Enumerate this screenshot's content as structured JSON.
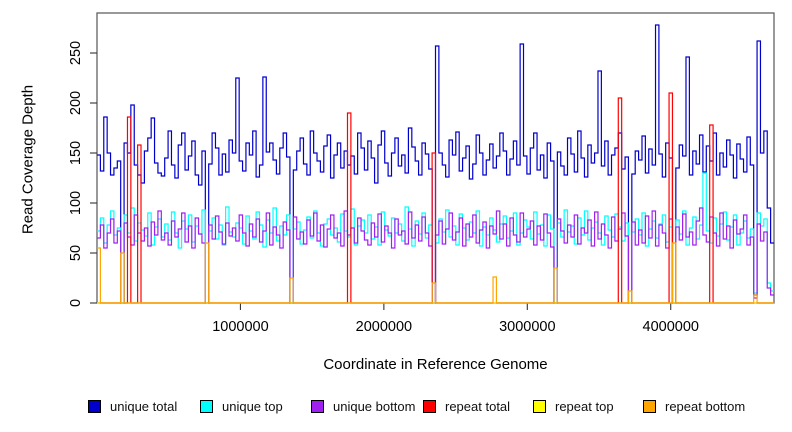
{
  "chart_data": {
    "type": "line",
    "subtype": "step",
    "title": "",
    "xlabel": "Coordinate in Reference Genome",
    "ylabel": "Read Coverage Depth",
    "xlim": [
      0,
      4720000
    ],
    "ylim": [
      0,
      290
    ],
    "grid": false,
    "legend_position": "bottom",
    "xticks": [
      {
        "v": 1000000,
        "label": "1000000"
      },
      {
        "v": 2000000,
        "label": "2000000"
      },
      {
        "v": 3000000,
        "label": "3000000"
      },
      {
        "v": 4000000,
        "label": "4000000"
      }
    ],
    "yticks": [
      {
        "v": 0,
        "label": "0"
      },
      {
        "v": 50,
        "label": "50"
      },
      {
        "v": 100,
        "label": "100"
      },
      {
        "v": 150,
        "label": "150"
      },
      {
        "v": 200,
        "label": "200"
      },
      {
        "v": 250,
        "label": "250"
      }
    ],
    "series": [
      {
        "name": "unique total",
        "color": "#0000CD",
        "values": [
          148,
          132,
          186,
          150,
          128,
          135,
          142,
          0,
          160,
          150,
          198,
          138,
          128,
          120,
          152,
          165,
          185,
          140,
          130,
          127,
          145,
          172,
          138,
          125,
          158,
          170,
          133,
          147,
          162,
          128,
          118,
          152,
          0,
          139,
          170,
          155,
          128,
          149,
          131,
          163,
          150,
          225,
          142,
          132,
          160,
          148,
          172,
          126,
          138,
          226,
          151,
          160,
          143,
          129,
          155,
          170,
          146,
          0,
          133,
          152,
          165,
          139,
          128,
          172,
          150,
          142,
          131,
          157,
          168,
          125,
          148,
          160,
          135,
          152,
          138,
          147,
          129,
          170,
          155,
          133,
          162,
          145,
          120,
          158,
          172,
          140,
          127,
          150,
          165,
          137,
          148,
          130,
          175,
          156,
          142,
          128,
          160,
          149,
          134,
          0,
          257,
          150,
          138,
          126,
          163,
          148,
          171,
          132,
          145,
          157,
          124,
          139,
          168,
          150,
          128,
          143,
          159,
          135,
          147,
          170,
          152,
          128,
          144,
          162,
          138,
          259,
          147,
          129,
          155,
          170,
          133,
          148,
          125,
          160,
          142,
          0,
          151,
          137,
          128,
          165,
          149,
          131,
          172,
          145,
          126,
          158,
          140,
          150,
          232,
          137,
          162,
          128,
          148,
          155,
          170,
          134,
          146,
          0,
          129,
          152,
          143,
          167,
          130,
          154,
          138,
          278,
          149,
          126,
          160,
          145,
          0,
          135,
          158,
          147,
          246,
          128,
          152,
          139,
          168,
          131,
          157,
          142,
          170,
          128,
          150,
          136,
          163,
          148,
          125,
          159,
          144,
          131,
          166,
          138,
          8,
          262,
          150,
          172,
          95,
          60
        ]
      },
      {
        "name": "unique top",
        "color": "#00FFFF",
        "values": [
          72,
          85,
          60,
          78,
          92,
          68,
          75,
          0,
          88,
          70,
          95,
          62,
          80,
          73,
          67,
          90,
          58,
          76,
          84,
          66,
          79,
          63,
          91,
          70,
          55,
          82,
          74,
          88,
          61,
          77,
          69,
          93,
          0,
          72,
          85,
          64,
          78,
          58,
          96,
          71,
          66,
          80,
          75,
          59,
          87,
          72,
          64,
          91,
          78,
          56,
          83,
          70,
          95,
          62,
          77,
          68,
          88,
          0,
          74,
          81,
          59,
          73,
          86,
          65,
          92,
          70,
          57,
          79,
          84,
          68,
          75,
          61,
          89,
          72,
          66,
          94,
          58,
          77,
          83,
          70,
          88,
          64,
          76,
          58,
          91,
          73,
          67,
          85,
          70,
          79,
          62,
          96,
          74,
          57,
          82,
          69,
          90,
          65,
          78,
          0,
          60,
          84,
          71,
          93,
          66,
          77,
          58,
          89,
          75,
          63,
          81,
          70,
          92,
          57,
          76,
          68,
          85,
          73,
          61,
          79,
          87,
          65,
          72,
          90,
          58,
          70,
          83,
          76,
          64,
          91,
          69,
          78,
          57,
          88,
          74,
          0,
          80,
          66,
          93,
          71,
          77,
          59,
          85,
          68,
          92,
          63,
          75,
          81,
          70,
          58,
          87,
          73,
          66,
          89,
          76,
          62,
          80,
          0,
          71,
          84,
          68,
          90,
          57,
          74,
          82,
          65,
          79,
          88,
          61,
          76,
          0,
          83,
          69,
          92,
          58,
          75,
          86,
          64,
          78,
          130,
          72,
          60,
          85,
          67,
          79,
          91,
          63,
          76,
          88,
          58,
          70,
          82,
          65,
          74,
          10,
          90,
          77,
          84,
          20,
          12
        ]
      },
      {
        "name": "unique bottom",
        "color": "#A020F0",
        "values": [
          65,
          78,
          55,
          70,
          84,
          60,
          72,
          0,
          80,
          66,
          58,
          88,
          70,
          62,
          75,
          57,
          81,
          68,
          92,
          63,
          70,
          58,
          82,
          66,
          74,
          90,
          61,
          77,
          55,
          85,
          69,
          60,
          0,
          78,
          64,
          87,
          71,
          59,
          80,
          67,
          75,
          62,
          88,
          70,
          57,
          79,
          66,
          84,
          61,
          72,
          90,
          58,
          76,
          68,
          55,
          81,
          73,
          0,
          86,
          64,
          71,
          59,
          83,
          67,
          90,
          62,
          78,
          56,
          74,
          88,
          65,
          70,
          57,
          92,
          68,
          75,
          60,
          85,
          72,
          63,
          58,
          80,
          66,
          89,
          61,
          77,
          70,
          55,
          84,
          68,
          72,
          59,
          91,
          65,
          78,
          62,
          86,
          70,
          57,
          0,
          68,
          82,
          59,
          74,
          90,
          63,
          71,
          85,
          57,
          79,
          66,
          88,
          60,
          73,
          81,
          55,
          77,
          69,
          92,
          64,
          79,
          57,
          85,
          68,
          61,
          90,
          66,
          74,
          82,
          58,
          77,
          63,
          89,
          70,
          56,
          0,
          84,
          72,
          60,
          78,
          66,
          88,
          59,
          75,
          70,
          83,
          57,
          91,
          64,
          79,
          68,
          55,
          86,
          62,
          74,
          90,
          67,
          0,
          81,
          58,
          73,
          60,
          87,
          65,
          92,
          57,
          78,
          70,
          55,
          84,
          0,
          76,
          63,
          89,
          66,
          71,
          58,
          82,
          95,
          68,
          61,
          86,
          70,
          57,
          90,
          64,
          77,
          55,
          83,
          69,
          74,
          88,
          58,
          66,
          5,
          79,
          62,
          71,
          15,
          8
        ]
      },
      {
        "name": "repeat total",
        "color": "#FF0000",
        "baseline": 0,
        "spikes": [
          [
            9,
            186
          ],
          [
            12,
            158
          ],
          [
            74,
            190
          ],
          [
            99,
            150
          ],
          [
            154,
            205
          ],
          [
            169,
            210
          ],
          [
            181,
            178
          ]
        ]
      },
      {
        "name": "repeat top",
        "color": "#FFFF00",
        "baseline": 0,
        "spikes": []
      },
      {
        "name": "repeat bottom",
        "color": "#FFA500",
        "baseline": 0,
        "spikes": [
          [
            0,
            55
          ],
          [
            7,
            50
          ],
          [
            32,
            60
          ],
          [
            57,
            25
          ],
          [
            99,
            20
          ],
          [
            117,
            26
          ],
          [
            135,
            35
          ],
          [
            157,
            12
          ],
          [
            170,
            60
          ],
          [
            194,
            8
          ]
        ]
      }
    ]
  }
}
